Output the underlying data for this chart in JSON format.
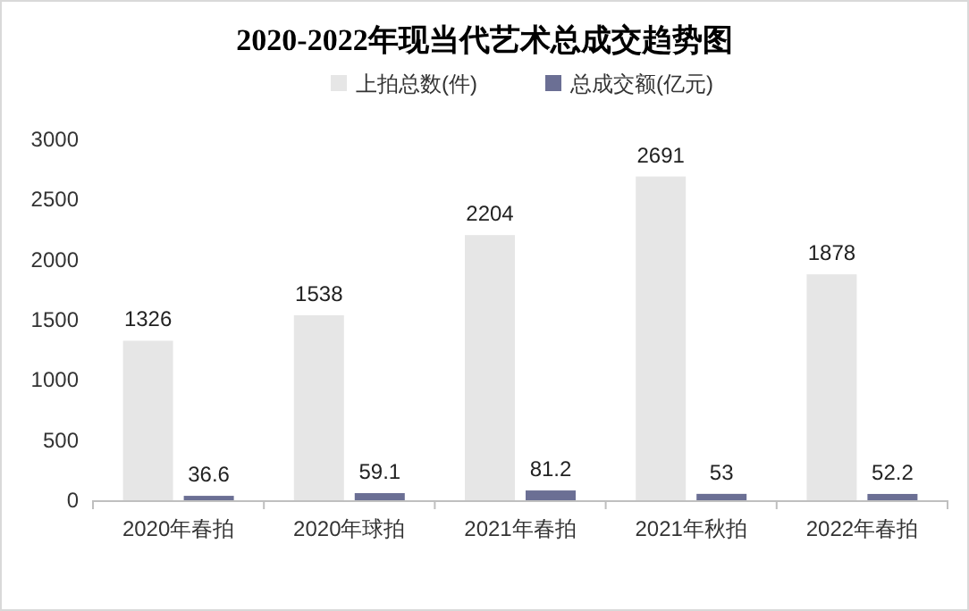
{
  "chart_data": {
    "type": "bar",
    "title": "2020-2022年现当代艺术总成交趋势图",
    "categories": [
      "2020年春拍",
      "2020年球拍",
      "2021年春拍",
      "2021年秋拍",
      "2022年春拍"
    ],
    "series": [
      {
        "name": "上拍总数(件)",
        "color": "#e6e6e6",
        "values": [
          1326,
          1538,
          2204,
          2691,
          1878
        ]
      },
      {
        "name": "总成交额(亿元)",
        "color": "#6b6f94",
        "values": [
          36.6,
          59.1,
          81.2,
          53,
          52.2
        ]
      }
    ],
    "ylim": [
      0,
      3000
    ],
    "yticks": [
      0,
      500,
      1000,
      1500,
      2000,
      2500,
      3000
    ],
    "data_labels": true,
    "legend": "top",
    "grid": false
  }
}
